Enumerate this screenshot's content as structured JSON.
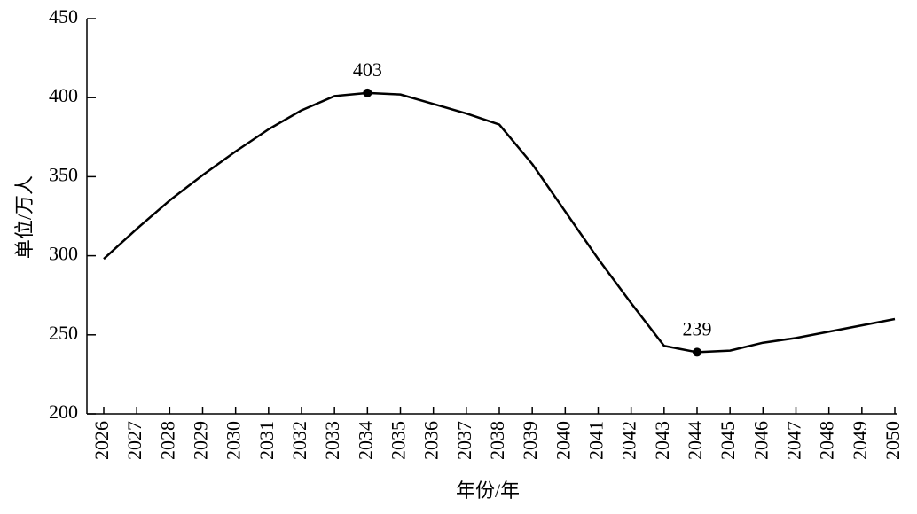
{
  "chart_data": {
    "type": "line",
    "categories": [
      "2026",
      "2027",
      "2028",
      "2029",
      "2030",
      "2031",
      "2032",
      "2033",
      "2034",
      "2035",
      "2036",
      "2037",
      "2038",
      "2039",
      "2040",
      "2041",
      "2042",
      "2043",
      "2044",
      "2045",
      "2046",
      "2047",
      "2048",
      "2049",
      "2050"
    ],
    "values": [
      298,
      317,
      335,
      351,
      366,
      380,
      392,
      401,
      403,
      402,
      396,
      390,
      383,
      358,
      328,
      298,
      270,
      243,
      239,
      240,
      245,
      248,
      252,
      256,
      260
    ],
    "color": "#000000",
    "ylim": [
      200,
      450
    ],
    "yticks": [
      200,
      250,
      300,
      350,
      400,
      450
    ],
    "ylabel": "单位/万人",
    "xlabel": "年份/年",
    "label_extremes": true,
    "grid": false
  }
}
